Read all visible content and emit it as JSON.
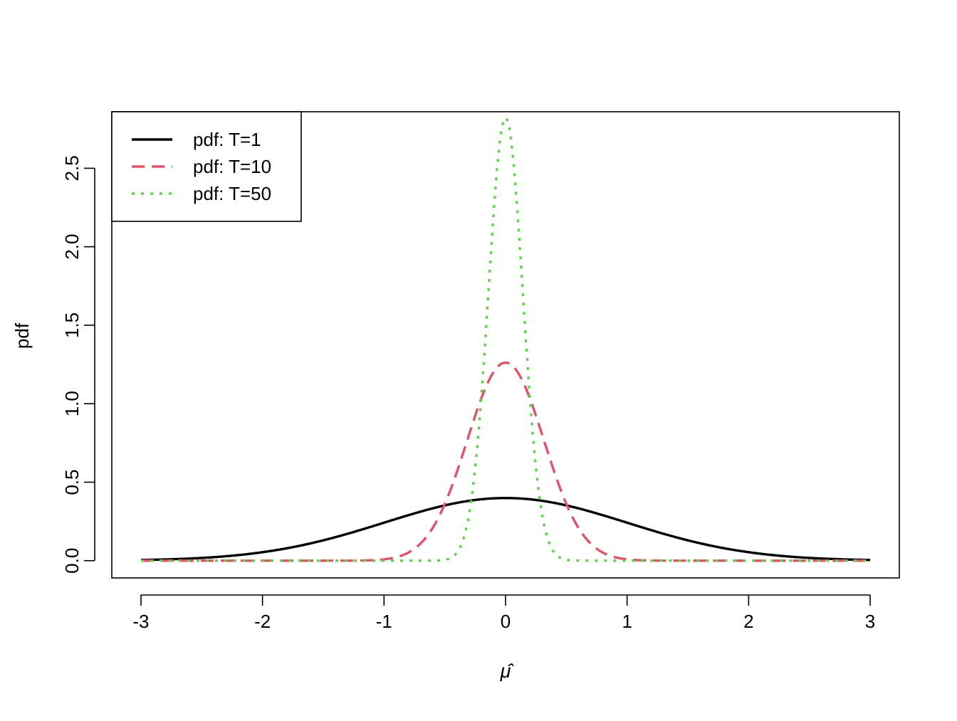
{
  "chart_data": {
    "type": "line",
    "title": "",
    "xlabel": "μ̂",
    "ylabel": "pdf",
    "xlim": [
      -3.24,
      3.24
    ],
    "ylim": [
      -0.11,
      2.86
    ],
    "x_ticks": [
      -3,
      -2,
      -1,
      0,
      1,
      2,
      3
    ],
    "x_tick_labels": [
      "-3",
      "-2",
      "-1",
      "0",
      "1",
      "2",
      "3"
    ],
    "y_ticks": [
      0,
      0.5,
      1,
      1.5,
      2,
      2.5
    ],
    "y_tick_labels": [
      "0.0",
      "0.5",
      "1.0",
      "1.5",
      "2.0",
      "2.5"
    ],
    "grid": false,
    "legend_position": "top-left",
    "series": [
      {
        "name": "pdf: T=1",
        "sd": 1.0,
        "peak": 0.399,
        "color": "#000000",
        "line_style": "solid"
      },
      {
        "name": "pdf: T=10",
        "sd": 0.3162,
        "peak": 1.262,
        "color": "#DF536B",
        "line_style": "dashed"
      },
      {
        "name": "pdf: T=50",
        "sd": 0.1414,
        "peak": 2.821,
        "color": "#61D04F",
        "line_style": "dotted"
      }
    ]
  }
}
